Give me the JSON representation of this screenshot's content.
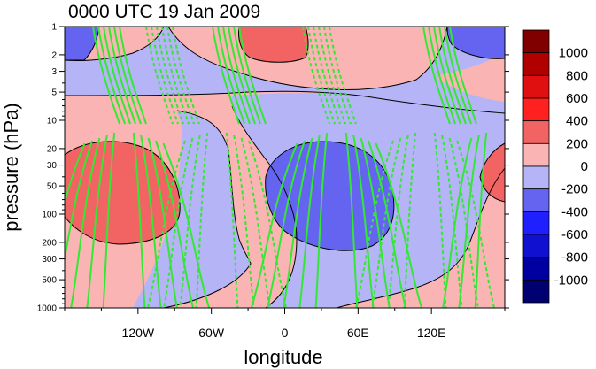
{
  "chart_data": {
    "type": "heatmap",
    "title": "0000 UTC 19 Jan 2009",
    "xlabel": "longitude",
    "ylabel": "pressure (hPa)",
    "y_scale": "log",
    "y_reversed": true,
    "xlim": [
      -180,
      180
    ],
    "ylim": [
      1000,
      1
    ],
    "x_ticks": [
      {
        "value": -120,
        "label": "120W"
      },
      {
        "value": -60,
        "label": "60W"
      },
      {
        "value": 0,
        "label": "0"
      },
      {
        "value": 60,
        "label": "60E"
      },
      {
        "value": 120,
        "label": "120E"
      }
    ],
    "y_ticks": [
      {
        "value": 1,
        "label": "1"
      },
      {
        "value": 2,
        "label": "2"
      },
      {
        "value": 3,
        "label": "3"
      },
      {
        "value": 5,
        "label": "5"
      },
      {
        "value": 10,
        "label": "10"
      },
      {
        "value": 20,
        "label": "20"
      },
      {
        "value": 30,
        "label": "30"
      },
      {
        "value": 50,
        "label": "50"
      },
      {
        "value": 100,
        "label": "100"
      },
      {
        "value": 200,
        "label": "200"
      },
      {
        "value": 300,
        "label": "300"
      },
      {
        "value": 500,
        "label": "500"
      },
      {
        "value": 1000,
        "label": "1000"
      }
    ],
    "colorbar": {
      "labels": [
        "1000",
        "800",
        "600",
        "400",
        "200",
        "0",
        "-200",
        "-400",
        "-600",
        "-800",
        "-1000"
      ],
      "colors": [
        "#800000",
        "#b00000",
        "#e01010",
        "#ff2020",
        "#f26464",
        "#fbb4b4",
        "#b4b4f6",
        "#6464f0",
        "#2020ff",
        "#1010d0",
        "#0000a0",
        "#000070"
      ]
    },
    "shaded_field": {
      "description_levels": "filled contours of a wave pattern; positive = red shades, negative = blue shades",
      "colors_used": {
        "weak_positive": "#fbb4b4",
        "weak_negative": "#b4b4f6",
        "moderate_positive": "#f26464",
        "moderate_negative": "#6464f0"
      }
    },
    "overlay_contours": {
      "color": "#33e833",
      "styles": [
        "solid",
        "dashed"
      ]
    }
  }
}
